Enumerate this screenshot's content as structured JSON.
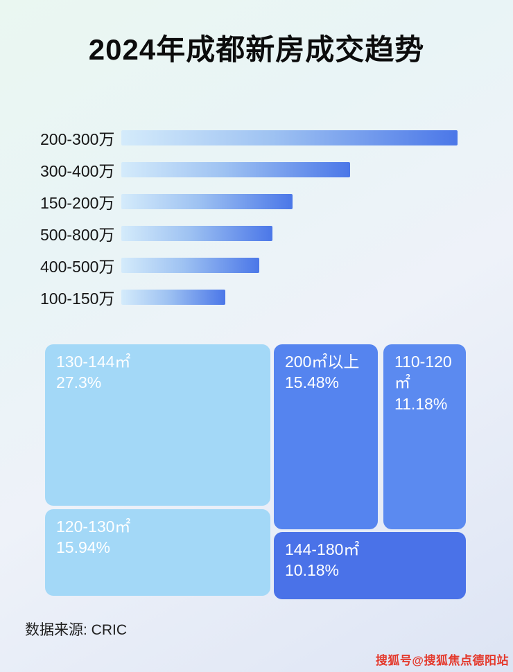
{
  "page": {
    "title": "2024年成都新房成交趋势"
  },
  "bars": {
    "items": [
      {
        "label": "200-300万",
        "width_pct": 100
      },
      {
        "label": "300-400万",
        "width_pct": 68
      },
      {
        "label": "150-200万",
        "width_pct": 51
      },
      {
        "label": "500-800万",
        "width_pct": 45
      },
      {
        "label": "400-500万",
        "width_pct": 41
      },
      {
        "label": "100-150万",
        "width_pct": 31
      }
    ]
  },
  "treemap": {
    "items": [
      {
        "label": "130-144㎡",
        "value": "27.3%"
      },
      {
        "label": "120-130㎡",
        "value": "15.94%"
      },
      {
        "label": "200㎡以上",
        "value": "15.48%"
      },
      {
        "label": "110-120㎡",
        "value": "11.18%"
      },
      {
        "label": "144-180㎡",
        "value": "10.18%"
      }
    ]
  },
  "footer": {
    "source": "数据来源: CRIC"
  },
  "watermark": {
    "text": "搜狐号@搜狐焦点德阳站"
  },
  "colors": {
    "bar_gradient_start": "#d4ebfb",
    "bar_gradient_end": "#4b77e8",
    "treemap_light_blue": "#a3d8f7",
    "treemap_medium_blue": "#5584ef",
    "treemap_dark_blue": "#4a72e8",
    "watermark_red": "#e4392c"
  },
  "chart_data": [
    {
      "type": "bar",
      "orientation": "horizontal",
      "title": "2024年成都新房成交趋势",
      "categories": [
        "200-300万",
        "300-400万",
        "150-200万",
        "500-800万",
        "400-500万",
        "100-150万"
      ],
      "values_relative_pct_of_max": [
        100,
        68,
        51,
        45,
        41,
        31
      ],
      "value_labels_shown": false,
      "grid": false,
      "legend": false
    },
    {
      "type": "treemap",
      "items": [
        {
          "label": "130-144㎡",
          "value_pct": 27.3
        },
        {
          "label": "120-130㎡",
          "value_pct": 15.94
        },
        {
          "label": "200㎡以上",
          "value_pct": 15.48
        },
        {
          "label": "110-120㎡",
          "value_pct": 11.18
        },
        {
          "label": "144-180㎡",
          "value_pct": 10.18
        }
      ]
    }
  ]
}
